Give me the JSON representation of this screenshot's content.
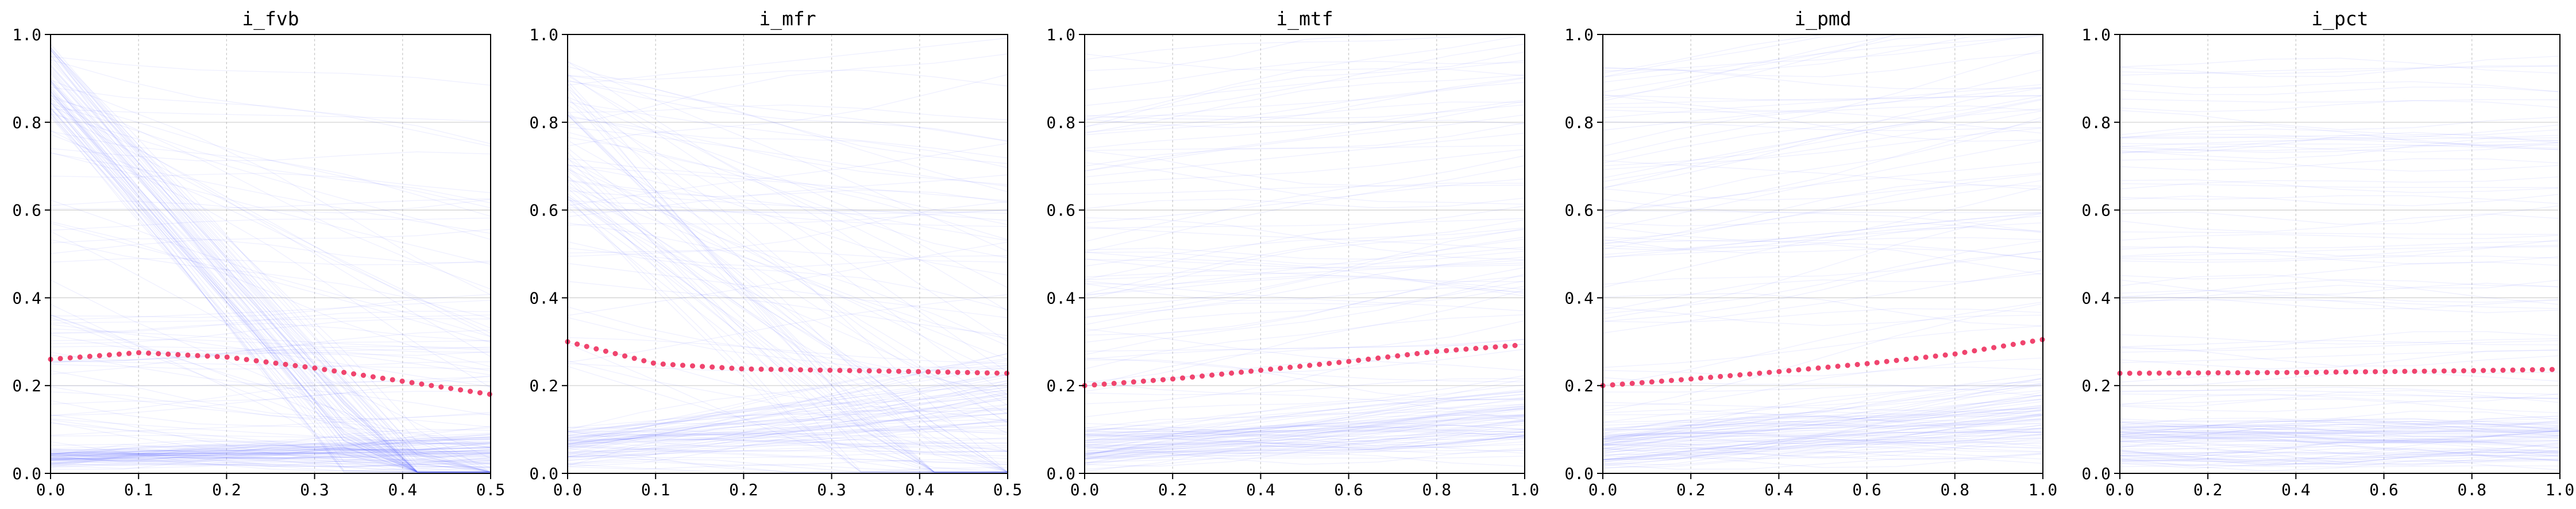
{
  "figure": {
    "background": "#ffffff"
  },
  "style": {
    "ice_color": "#4a55ff",
    "mean_color": "#f0446e",
    "grid_color": "#b0b0b0",
    "axis_color": "#000000"
  },
  "chart_data": [
    {
      "type": "line",
      "title": "i_fvb",
      "xlabel": "",
      "ylabel": "",
      "xlim": [
        0.0,
        0.5
      ],
      "ylim": [
        0.0,
        1.0
      ],
      "xticks": [
        "0.0",
        "0.1",
        "0.2",
        "0.3",
        "0.4",
        "0.5"
      ],
      "yticks": [
        "0.0",
        "0.2",
        "0.4",
        "0.6",
        "0.8",
        "1.0"
      ],
      "grid": true,
      "mean_curve": {
        "x": [
          0.0,
          0.1,
          0.2,
          0.3,
          0.4,
          0.5
        ],
        "y": [
          0.26,
          0.275,
          0.265,
          0.24,
          0.21,
          0.18
        ]
      },
      "ice_bands": [
        {
          "y0": [
            0.02,
            0.05
          ],
          "slope": [
            -0.02,
            0.06
          ],
          "count": 70
        },
        {
          "y0": [
            0.05,
            0.35
          ],
          "slope": [
            -0.15,
            0.1
          ],
          "count": 35
        },
        {
          "y0": [
            0.82,
            0.98
          ],
          "slope": [
            -1.25,
            -1.05
          ],
          "count": 55
        },
        {
          "y0": [
            0.35,
            0.95
          ],
          "slope": [
            -0.6,
            0.1
          ],
          "count": 35
        }
      ]
    },
    {
      "type": "line",
      "title": "i_mfr",
      "xlabel": "",
      "ylabel": "",
      "xlim": [
        0.0,
        0.5
      ],
      "ylim": [
        0.0,
        1.0
      ],
      "xticks": [
        "0.0",
        "0.1",
        "0.2",
        "0.3",
        "0.4",
        "0.5"
      ],
      "yticks": [
        "0.0",
        "0.2",
        "0.4",
        "0.6",
        "0.8",
        "1.0"
      ],
      "grid": true,
      "mean_curve": {
        "x": [
          0.0,
          0.1,
          0.2,
          0.3,
          0.4,
          0.5
        ],
        "y": [
          0.3,
          0.25,
          0.238,
          0.235,
          0.232,
          0.228
        ]
      },
      "ice_bands": [
        {
          "y0": [
            0.02,
            0.1
          ],
          "slope": [
            -0.05,
            0.2
          ],
          "count": 70
        },
        {
          "y0": [
            0.6,
            0.95
          ],
          "slope": [
            -1.2,
            -0.4
          ],
          "count": 40
        },
        {
          "y0": [
            0.2,
            0.95
          ],
          "slope": [
            -0.4,
            0.2
          ],
          "count": 45
        }
      ]
    },
    {
      "type": "line",
      "title": "i_mtf",
      "xlabel": "",
      "ylabel": "",
      "xlim": [
        0.0,
        1.0
      ],
      "ylim": [
        0.0,
        1.0
      ],
      "xticks": [
        "0.0",
        "0.2",
        "0.4",
        "0.6",
        "0.8",
        "1.0"
      ],
      "yticks": [
        "0.0",
        "0.2",
        "0.4",
        "0.6",
        "0.8",
        "1.0"
      ],
      "grid": true,
      "mean_curve": {
        "x": [
          0.0,
          0.2,
          0.4,
          0.6,
          0.8,
          1.0
        ],
        "y": [
          0.2,
          0.215,
          0.235,
          0.255,
          0.278,
          0.293
        ]
      },
      "ice_bands": [
        {
          "y0": [
            0.02,
            0.1
          ],
          "slope": [
            0.0,
            0.12
          ],
          "count": 70
        },
        {
          "y0": [
            0.1,
            0.95
          ],
          "slope": [
            -0.1,
            0.2
          ],
          "count": 70
        }
      ]
    },
    {
      "type": "line",
      "title": "i_pmd",
      "xlabel": "",
      "ylabel": "",
      "xlim": [
        0.0,
        1.0
      ],
      "ylim": [
        0.0,
        1.0
      ],
      "xticks": [
        "0.0",
        "0.2",
        "0.4",
        "0.6",
        "0.8",
        "1.0"
      ],
      "yticks": [
        "0.0",
        "0.2",
        "0.4",
        "0.6",
        "0.8",
        "1.0"
      ],
      "grid": true,
      "mean_curve": {
        "x": [
          0.0,
          0.2,
          0.4,
          0.6,
          0.8,
          1.0
        ],
        "y": [
          0.2,
          0.215,
          0.232,
          0.25,
          0.272,
          0.305
        ]
      },
      "ice_bands": [
        {
          "y0": [
            0.02,
            0.1
          ],
          "slope": [
            0.0,
            0.14
          ],
          "count": 70
        },
        {
          "y0": [
            0.1,
            0.95
          ],
          "slope": [
            -0.08,
            0.25
          ],
          "count": 70
        }
      ]
    },
    {
      "type": "line",
      "title": "i_pct",
      "xlabel": "",
      "ylabel": "",
      "xlim": [
        0.0,
        1.0
      ],
      "ylim": [
        0.0,
        1.0
      ],
      "xticks": [
        "0.0",
        "0.2",
        "0.4",
        "0.6",
        "0.8",
        "1.0"
      ],
      "yticks": [
        "0.0",
        "0.2",
        "0.4",
        "0.6",
        "0.8",
        "1.0"
      ],
      "grid": true,
      "mean_curve": {
        "x": [
          0.0,
          0.2,
          0.4,
          0.6,
          0.8,
          1.0
        ],
        "y": [
          0.228,
          0.229,
          0.23,
          0.232,
          0.234,
          0.237
        ]
      },
      "ice_bands": [
        {
          "y0": [
            0.02,
            0.12
          ],
          "slope": [
            -0.01,
            0.02
          ],
          "count": 70
        },
        {
          "y0": [
            0.12,
            0.95
          ],
          "slope": [
            -0.02,
            0.03
          ],
          "count": 65
        }
      ]
    }
  ]
}
